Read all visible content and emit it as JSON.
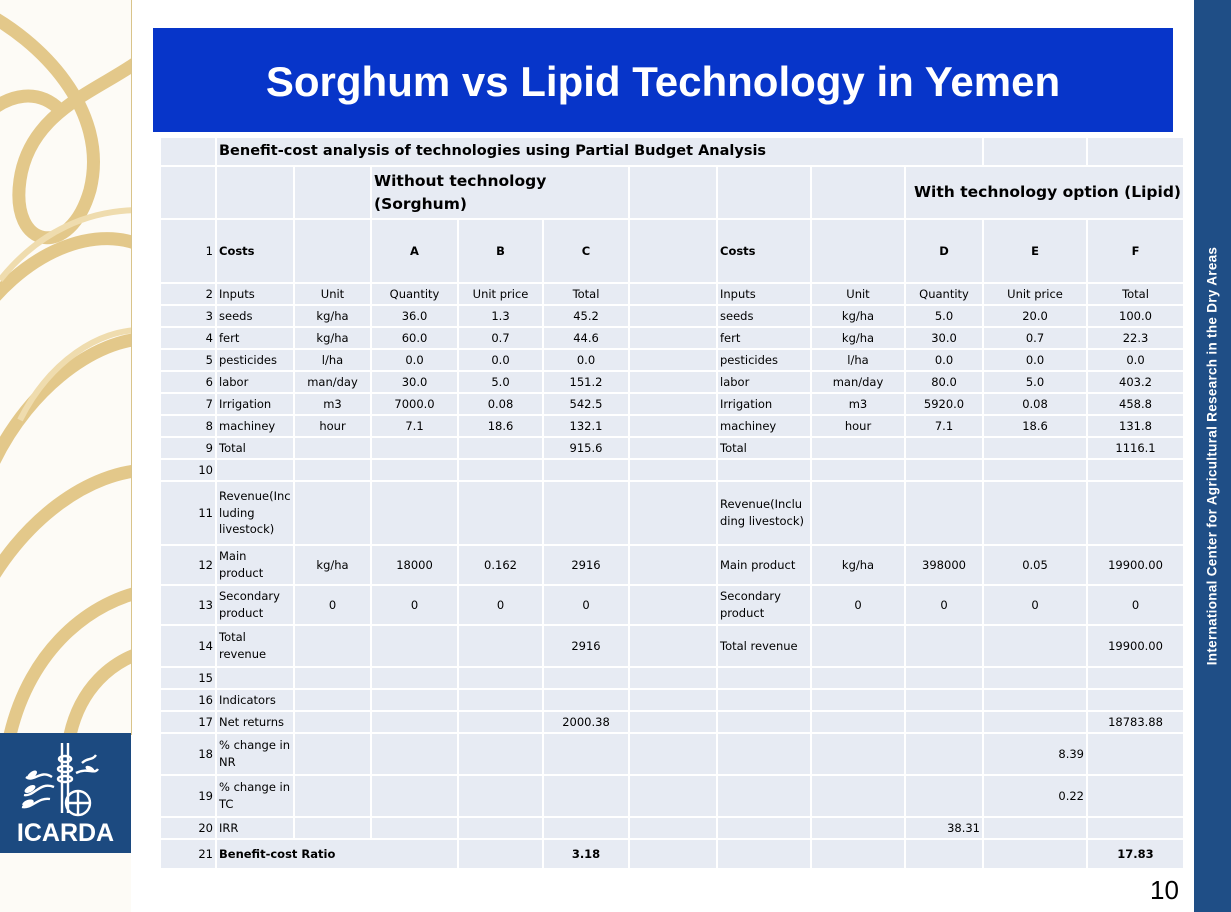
{
  "slide": {
    "title": "Sorghum vs Lipid Technology in Yemen",
    "page_number": "10",
    "sidebar_text": "International Center for Agricultural Research in the Dry Areas",
    "logo_text": "ICARDA",
    "colors": {
      "title_bg": "#0735c9",
      "sidebar_bg": "#1f4e86",
      "logo_bg": "#1c4a80",
      "table_cell": "#e7ebf3",
      "accent_text": "#0c2a84",
      "ornament": "#e3c88a"
    }
  },
  "table": {
    "caption": "Benefit-cost analysis of technologies using Partial Budget Analysis",
    "group_without": "Without technology (Sorghum)",
    "group_with": "With technology option (Lipid)",
    "header": {
      "num": "1",
      "left_label": "Costs",
      "a": "A",
      "b": "B",
      "c": "C",
      "right_label": "Costs",
      "d": "D",
      "e": "E",
      "f": "F"
    },
    "columns": {
      "num": "2",
      "left": [
        "Inputs",
        "Unit",
        "Quantity",
        "Unit price",
        "Total"
      ],
      "right": [
        "Inputs",
        "Unit",
        "Quantity",
        "Unit price",
        "Total"
      ]
    },
    "inputs": [
      {
        "num": "3",
        "left": [
          "seeds",
          "kg/ha",
          "36.0",
          "1.3",
          "45.2"
        ],
        "right": [
          "seeds",
          "kg/ha",
          "5.0",
          "20.0",
          "100.0"
        ]
      },
      {
        "num": "4",
        "left": [
          "fert",
          "kg/ha",
          "60.0",
          "0.7",
          "44.6"
        ],
        "right": [
          "fert",
          "kg/ha",
          "30.0",
          "0.7",
          "22.3"
        ]
      },
      {
        "num": "5",
        "left": [
          "pesticides",
          "l/ha",
          "0.0",
          "0.0",
          "0.0"
        ],
        "right": [
          "pesticides",
          "l/ha",
          "0.0",
          "0.0",
          "0.0"
        ]
      },
      {
        "num": "6",
        "left": [
          "labor",
          "man/day",
          "30.0",
          "5.0",
          "151.2"
        ],
        "right": [
          "labor",
          "man/day",
          "80.0",
          "5.0",
          "403.2"
        ]
      },
      {
        "num": "7",
        "left": [
          "Irrigation",
          "m3",
          "7000.0",
          "0.08",
          "542.5"
        ],
        "right": [
          "Irrigation",
          "m3",
          "5920.0",
          "0.08",
          "458.8"
        ]
      },
      {
        "num": "8",
        "left": [
          "machiney",
          "hour",
          "7.1",
          "18.6",
          "132.1"
        ],
        "right": [
          "machiney",
          "hour",
          "7.1",
          "18.6",
          "131.8"
        ]
      }
    ],
    "total_row": {
      "num": "9",
      "left_label": "Total",
      "left_total": "915.6",
      "right_label": "Total",
      "right_total": "1116.1"
    },
    "blank_10": "10",
    "revenue_row": {
      "num": "11",
      "left_label": "Revenue(Inc luding livestock)",
      "right_label": "Revenue(Inclu ding livestock)"
    },
    "revenue": [
      {
        "num": "12",
        "left": [
          "Main product",
          "kg/ha",
          "18000",
          "0.162",
          "2916"
        ],
        "right": [
          "Main product",
          "kg/ha",
          "398000",
          "0.05",
          "19900.00"
        ]
      },
      {
        "num": "13",
        "left": [
          "Secondary product",
          "0",
          "0",
          "0",
          "0"
        ],
        "right": [
          "Secondary product",
          "0",
          "0",
          "0",
          "0"
        ]
      }
    ],
    "total_revenue": {
      "num": "14",
      "left_label": "Total revenue",
      "left_value": "2916",
      "right_label": "Total revenue",
      "right_value": "19900.00"
    },
    "blank_15": "15",
    "indicators": {
      "num": "16",
      "label": "Indicators"
    },
    "net_returns": {
      "num": "17",
      "label": "Net returns",
      "left_value": "2000.38",
      "right_value": "18783.88"
    },
    "nr_change": {
      "num": "18",
      "label": "% change in NR",
      "value": "8.39"
    },
    "tc_change": {
      "num": "19",
      "label": "% change in TC",
      "value": "0.22"
    },
    "irr": {
      "num": "20",
      "label": "IRR",
      "value": "38.31"
    },
    "bcr": {
      "num": "21",
      "label": "Benefit-cost Ratio",
      "left_value": "3.18",
      "right_value": "17.83"
    }
  }
}
